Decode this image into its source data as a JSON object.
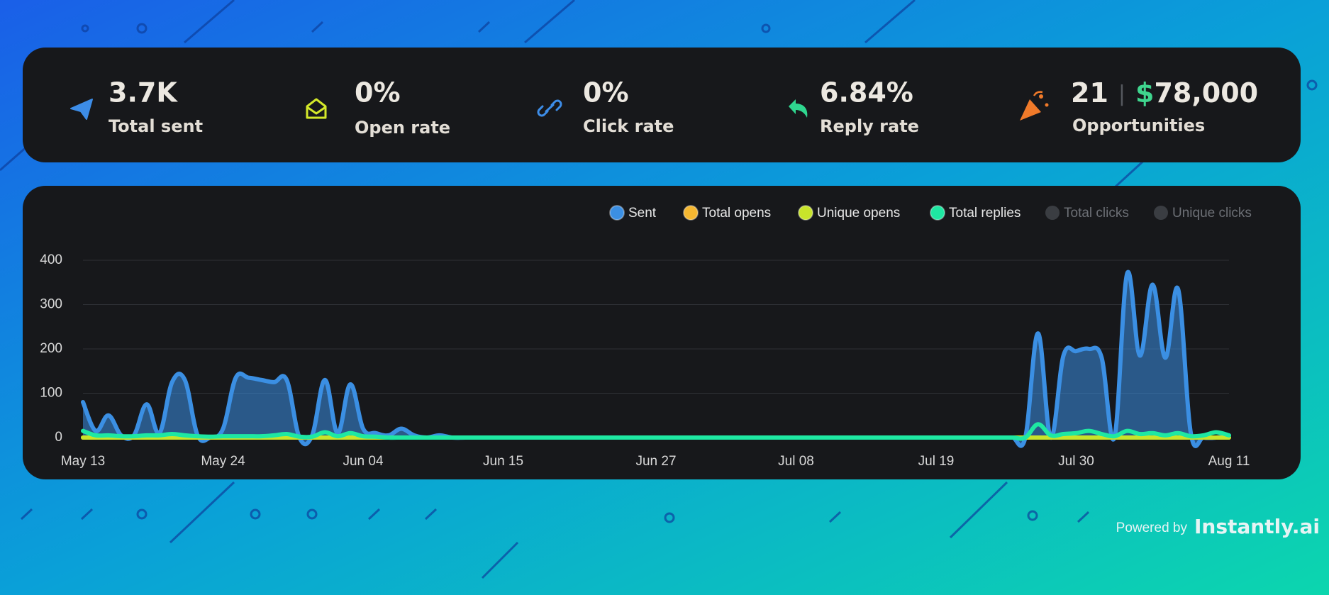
{
  "stats": [
    {
      "value": "3.7K",
      "label": "Total sent"
    },
    {
      "value": "0%",
      "label": "Open rate"
    },
    {
      "value": "0%",
      "label": "Click rate"
    },
    {
      "value": "6.84%",
      "label": "Reply rate"
    },
    {
      "value": "21",
      "separator": "|",
      "amount_symbol": "$",
      "amount": "78,000",
      "label": "Opportunities"
    }
  ],
  "chart_data": {
    "type": "line",
    "categories": [
      "May 13",
      null,
      null,
      null,
      null,
      null,
      null,
      null,
      null,
      null,
      null,
      "May 24",
      null,
      null,
      null,
      null,
      null,
      null,
      null,
      null,
      null,
      null,
      "Jun 04",
      null,
      null,
      null,
      null,
      null,
      null,
      null,
      null,
      null,
      null,
      "Jun 15",
      null,
      null,
      null,
      null,
      null,
      null,
      null,
      null,
      null,
      null,
      null,
      "Jun 27",
      null,
      null,
      null,
      null,
      null,
      null,
      null,
      null,
      null,
      null,
      "Jul 08",
      null,
      null,
      null,
      null,
      null,
      null,
      null,
      null,
      null,
      null,
      "Jul 19",
      null,
      null,
      null,
      null,
      null,
      null,
      null,
      null,
      null,
      null,
      "Jul 30",
      null,
      null,
      null,
      null,
      null,
      null,
      null,
      null,
      null,
      null,
      null,
      "Aug 11"
    ],
    "ylim": [
      0,
      400
    ],
    "yticks": [
      0,
      100,
      200,
      300,
      400
    ],
    "grid": true,
    "legend": "top-right",
    "series": [
      {
        "name": "Sent",
        "color": "#3b8fe3",
        "area": true,
        "visible": true,
        "values": [
          80,
          15,
          50,
          5,
          5,
          75,
          10,
          125,
          130,
          5,
          0,
          20,
          135,
          135,
          130,
          125,
          130,
          0,
          5,
          130,
          10,
          120,
          20,
          10,
          5,
          20,
          5,
          0,
          5,
          0,
          0,
          0,
          0,
          0,
          0,
          0,
          0,
          0,
          0,
          0,
          0,
          0,
          0,
          0,
          0,
          0,
          0,
          0,
          0,
          0,
          0,
          0,
          0,
          0,
          0,
          0,
          0,
          0,
          0,
          0,
          0,
          0,
          0,
          0,
          0,
          0,
          0,
          0,
          0,
          0,
          0,
          0,
          0,
          0,
          0,
          235,
          0,
          185,
          195,
          200,
          180,
          0,
          370,
          185,
          345,
          180,
          335,
          10,
          0,
          0,
          5
        ]
      },
      {
        "name": "Total opens",
        "color": "#f5b731",
        "visible": true,
        "values": [
          0,
          0,
          0,
          0,
          0,
          0,
          0,
          0,
          0,
          0,
          0,
          0,
          0,
          0,
          0,
          0,
          0,
          0,
          0,
          0,
          0,
          0,
          0,
          0,
          0,
          0,
          0,
          0,
          0,
          0,
          0,
          0,
          0,
          0,
          0,
          0,
          0,
          0,
          0,
          0,
          0,
          0,
          0,
          0,
          0,
          0,
          0,
          0,
          0,
          0,
          0,
          0,
          0,
          0,
          0,
          0,
          0,
          0,
          0,
          0,
          0,
          0,
          0,
          0,
          0,
          0,
          0,
          0,
          0,
          0,
          0,
          0,
          0,
          0,
          0,
          0,
          0,
          0,
          0,
          0,
          0,
          0,
          0,
          0,
          0,
          0,
          0,
          0,
          0,
          0,
          0
        ]
      },
      {
        "name": "Unique opens",
        "color": "#c8e42a",
        "visible": true,
        "values": [
          0,
          0,
          0,
          0,
          0,
          0,
          0,
          0,
          0,
          0,
          0,
          0,
          0,
          0,
          0,
          0,
          0,
          0,
          0,
          0,
          0,
          0,
          0,
          0,
          0,
          0,
          0,
          0,
          0,
          0,
          0,
          0,
          0,
          0,
          0,
          0,
          0,
          0,
          0,
          0,
          0,
          0,
          0,
          0,
          0,
          0,
          0,
          0,
          0,
          0,
          0,
          0,
          0,
          0,
          0,
          0,
          0,
          0,
          0,
          0,
          0,
          0,
          0,
          0,
          0,
          0,
          0,
          0,
          0,
          0,
          0,
          0,
          0,
          0,
          0,
          0,
          0,
          0,
          0,
          0,
          0,
          0,
          0,
          0,
          0,
          0,
          0,
          0,
          0,
          0,
          0
        ]
      },
      {
        "name": "Total replies",
        "color": "#1ee8a2",
        "visible": true,
        "values": [
          15,
          5,
          5,
          3,
          3,
          5,
          5,
          8,
          5,
          3,
          2,
          3,
          3,
          3,
          3,
          5,
          8,
          2,
          2,
          12,
          3,
          10,
          3,
          2,
          0,
          0,
          0,
          0,
          0,
          0,
          0,
          0,
          0,
          0,
          0,
          0,
          0,
          0,
          0,
          0,
          0,
          0,
          0,
          0,
          0,
          0,
          0,
          0,
          0,
          0,
          0,
          0,
          0,
          0,
          0,
          0,
          0,
          0,
          0,
          0,
          0,
          0,
          0,
          0,
          0,
          0,
          0,
          0,
          0,
          0,
          0,
          0,
          0,
          0,
          0,
          30,
          5,
          8,
          10,
          15,
          8,
          3,
          15,
          8,
          10,
          5,
          10,
          3,
          5,
          12,
          5
        ]
      },
      {
        "name": "Total clicks",
        "color": "#3a3d42",
        "visible": false,
        "values": [
          0,
          0,
          0,
          0,
          0,
          0,
          0,
          0,
          0,
          0,
          0,
          0,
          0,
          0,
          0,
          0,
          0,
          0,
          0,
          0,
          0,
          0,
          0,
          0,
          0,
          0,
          0,
          0,
          0,
          0,
          0,
          0,
          0,
          0,
          0,
          0,
          0,
          0,
          0,
          0,
          0,
          0,
          0,
          0,
          0,
          0,
          0,
          0,
          0,
          0,
          0,
          0,
          0,
          0,
          0,
          0,
          0,
          0,
          0,
          0,
          0,
          0,
          0,
          0,
          0,
          0,
          0,
          0,
          0,
          0,
          0,
          0,
          0,
          0,
          0,
          0,
          0,
          0,
          0,
          0,
          0,
          0,
          0,
          0,
          0,
          0,
          0,
          0,
          0,
          0,
          0
        ]
      },
      {
        "name": "Unique clicks",
        "color": "#3a3d42",
        "visible": false,
        "values": [
          0,
          0,
          0,
          0,
          0,
          0,
          0,
          0,
          0,
          0,
          0,
          0,
          0,
          0,
          0,
          0,
          0,
          0,
          0,
          0,
          0,
          0,
          0,
          0,
          0,
          0,
          0,
          0,
          0,
          0,
          0,
          0,
          0,
          0,
          0,
          0,
          0,
          0,
          0,
          0,
          0,
          0,
          0,
          0,
          0,
          0,
          0,
          0,
          0,
          0,
          0,
          0,
          0,
          0,
          0,
          0,
          0,
          0,
          0,
          0,
          0,
          0,
          0,
          0,
          0,
          0,
          0,
          0,
          0,
          0,
          0,
          0,
          0,
          0,
          0,
          0,
          0,
          0,
          0,
          0,
          0,
          0,
          0,
          0,
          0,
          0,
          0,
          0,
          0,
          0,
          0
        ]
      }
    ]
  },
  "footer": {
    "prefix": "Powered by",
    "brand": "Instantly.ai"
  }
}
